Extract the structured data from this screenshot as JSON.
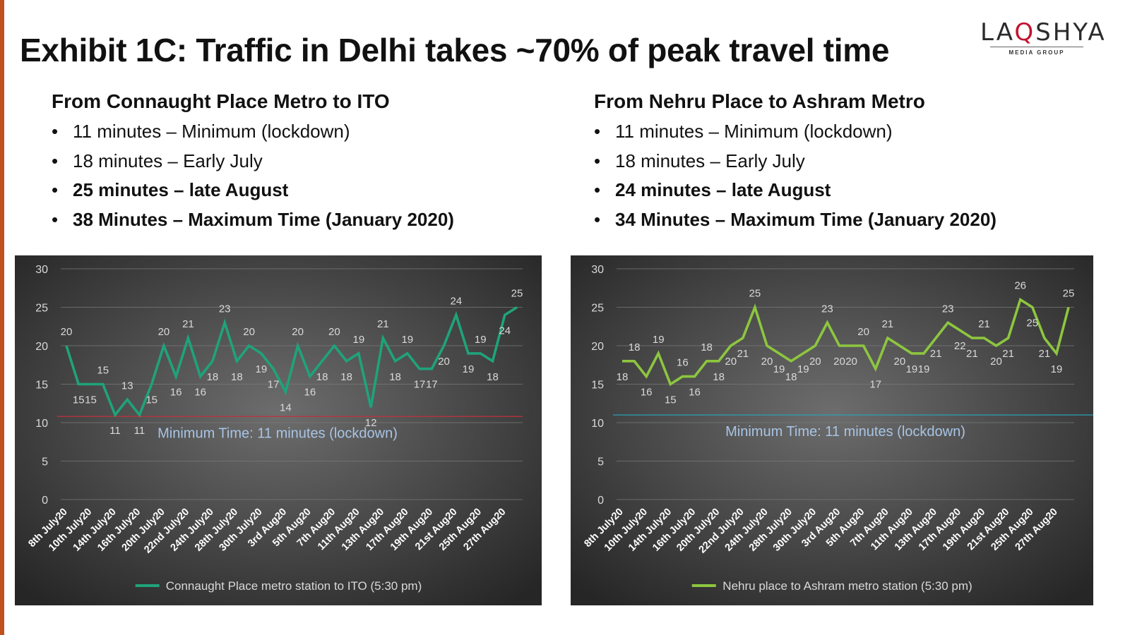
{
  "title": "Exhibit 1C: Traffic in Delhi takes ~70% of peak travel time",
  "logo": {
    "brand_pre": "LA",
    "brand_q": "Q",
    "brand_post": "SHYA",
    "tagline": "MEDIA GROUP"
  },
  "left": {
    "heading": "From Connaught Place Metro to ITO",
    "bullets": [
      "11 minutes – Minimum (lockdown)",
      "18 minutes – Early July",
      "25 minutes – late August",
      "38 Minutes – Maximum Time (January 2020)"
    ]
  },
  "right": {
    "heading": "From Nehru Place to Ashram Metro",
    "bullets": [
      "11  minutes – Minimum (lockdown)",
      "18 minutes – Early July",
      "24 minutes – late August",
      "34 Minutes – Maximum Time (January 2020)"
    ]
  },
  "chart_data": [
    {
      "type": "line",
      "series": [
        {
          "name": "Connaught Place metro station to ITO (5:30 pm)",
          "color": "#1fa37a",
          "values": [
            20,
            15,
            15,
            15,
            11,
            13,
            11,
            15,
            20,
            16,
            21,
            16,
            18,
            23,
            18,
            20,
            19,
            17,
            14,
            20,
            16,
            18,
            20,
            18,
            19,
            12,
            21,
            18,
            19,
            17,
            17,
            20,
            24,
            19,
            19,
            18,
            24,
            25
          ]
        }
      ],
      "x_labels": [
        "8th July20",
        "10th July20",
        "14th July20",
        "16th July20",
        "20th July20",
        "22nd July20",
        "24th July20",
        "28th July20",
        "30th July20",
        "3rd Aug20",
        "5th Aug20",
        "7th Aug20",
        "11th Aug20",
        "13th Aug20",
        "17th Aug20",
        "19th Aug20",
        "21st Aug20",
        "25th Aug20",
        "27th Aug20"
      ],
      "ylim": [
        0,
        30
      ],
      "yticks": [
        0,
        5,
        10,
        15,
        20,
        25,
        30
      ],
      "reference_line": {
        "value": 10.8,
        "color": "#c0303a"
      },
      "annotation": "Minimum Time: 11 minutes (lockdown)",
      "legend": "bottom"
    },
    {
      "type": "line",
      "series": [
        {
          "name": "Nehru place to Ashram metro station (5:30 pm)",
          "color": "#8dc63f",
          "values": [
            18,
            18,
            16,
            19,
            15,
            16,
            16,
            18,
            18,
            20,
            21,
            25,
            20,
            19,
            18,
            19,
            20,
            23,
            20,
            20,
            20,
            17,
            21,
            20,
            19,
            19,
            21,
            23,
            22,
            21,
            21,
            20,
            21,
            26,
            25,
            21,
            19,
            25
          ]
        }
      ],
      "x_labels": [
        "8th July20",
        "10th July20",
        "14th July20",
        "16th July20",
        "20th July20",
        "22nd July20",
        "24th July20",
        "28th July20",
        "30th July20",
        "3rd Aug20",
        "5th Aug20",
        "7th Aug20",
        "11th Aug20",
        "13th Aug20",
        "17th Aug20",
        "19th Aug20",
        "21st Aug20",
        "25th Aug20",
        "27th Aug20"
      ],
      "ylim": [
        0,
        30
      ],
      "yticks": [
        0,
        5,
        10,
        15,
        20,
        25,
        30
      ],
      "reference_line": {
        "value": 11,
        "color": "#2aa0b8"
      },
      "annotation": "Minimum Time: 11 minutes (lockdown)",
      "legend": "bottom"
    }
  ]
}
